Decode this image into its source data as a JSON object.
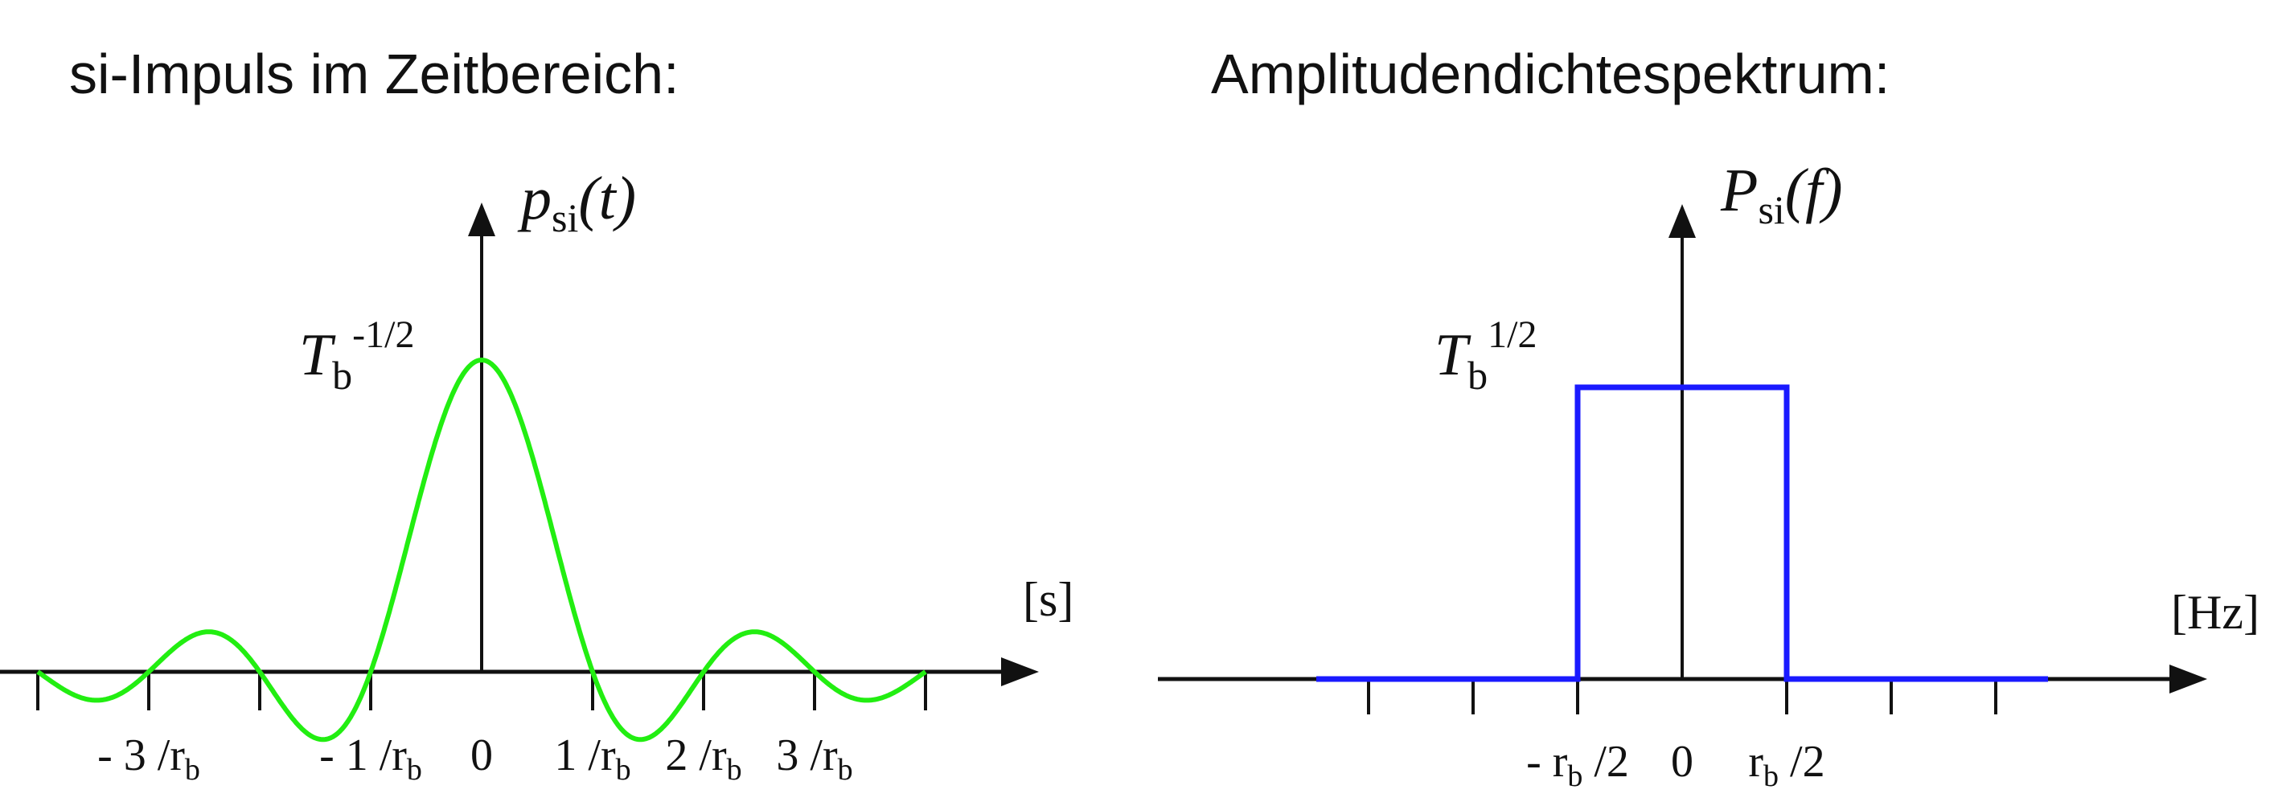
{
  "titles": {
    "left": "si-Impuls im Zeitbereich:",
    "right": "Amplitudendichtespektrum:"
  },
  "chart_data": [
    {
      "type": "line",
      "title": "si-Impuls im Zeitbereich:",
      "ylabel": {
        "base": "p",
        "sub": "si",
        "arg": "(t)"
      },
      "xunit": "[s]",
      "peak_label": {
        "base": "T",
        "sub": "b",
        "sup": "-1/2"
      },
      "x_ticks": [
        {
          "value": -4,
          "label": ""
        },
        {
          "value": -3,
          "label": "- 3 /r",
          "sub": "b"
        },
        {
          "value": -2,
          "label": ""
        },
        {
          "value": -1,
          "label": "- 1 /r",
          "sub": "b"
        },
        {
          "value": 0,
          "label": "0"
        },
        {
          "value": 1,
          "label": "1 /r",
          "sub": "b"
        },
        {
          "value": 2,
          "label": "2 /r",
          "sub": "b"
        },
        {
          "value": 3,
          "label": "3 /r",
          "sub": "b"
        },
        {
          "value": 4,
          "label": ""
        }
      ],
      "series": [
        {
          "function": "sinc",
          "x_range": [
            -4,
            4
          ],
          "peak": 1,
          "color": "#22ee11"
        }
      ]
    },
    {
      "type": "line",
      "title": "Amplitudendichtespektrum:",
      "ylabel": {
        "base": "P",
        "sub": "si",
        "arg": "(f)"
      },
      "xunit": "[Hz]",
      "level_label": {
        "base": "T",
        "sub": "b",
        "sup": "1/2"
      },
      "x_ticks": [
        {
          "value": -1.5,
          "label": ""
        },
        {
          "value": -1.0,
          "label": ""
        },
        {
          "value": -0.5,
          "label": "- r",
          "sub": "b",
          "after": " /2"
        },
        {
          "value": 0,
          "label": "0"
        },
        {
          "value": 0.5,
          "label": "r",
          "sub": "b",
          "after": " /2"
        },
        {
          "value": 1.0,
          "label": ""
        },
        {
          "value": 1.5,
          "label": ""
        }
      ],
      "series": [
        {
          "function": "rect",
          "x": [
            -1.75,
            -0.5,
            -0.5,
            0.5,
            0.5,
            1.75
          ],
          "y": [
            0,
            0,
            1,
            1,
            0,
            0
          ],
          "color": "#1a1aff"
        }
      ]
    }
  ]
}
